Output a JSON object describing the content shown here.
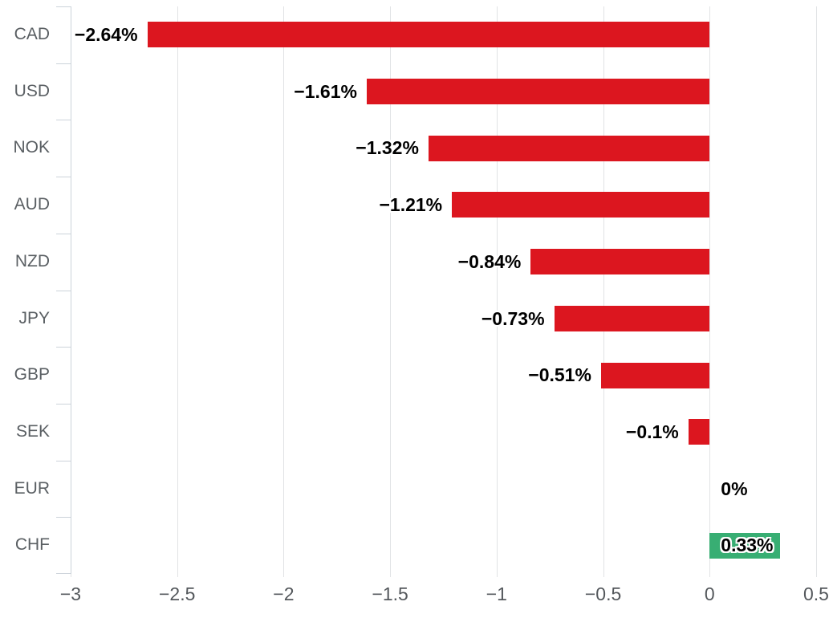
{
  "chart_data": {
    "type": "bar",
    "orientation": "horizontal",
    "title": "",
    "xlabel": "",
    "ylabel": "",
    "categories": [
      "CAD",
      "USD",
      "NOK",
      "AUD",
      "NZD",
      "JPY",
      "GBP",
      "SEK",
      "EUR",
      "CHF"
    ],
    "values": [
      -2.64,
      -1.61,
      -1.32,
      -1.21,
      -0.84,
      -0.73,
      -0.51,
      -0.1,
      0,
      0.33
    ],
    "data_labels": [
      "−2.64%",
      "−1.61%",
      "−1.32%",
      "−1.21%",
      "−0.84%",
      "−0.73%",
      "−0.51%",
      "−0.1%",
      "0%",
      "0.33%"
    ],
    "x_ticks": [
      -3,
      -2.5,
      -2,
      -1.5,
      -1,
      -0.5,
      0,
      0.5
    ],
    "x_tick_labels": [
      "−3",
      "−2.5",
      "−2",
      "−1.5",
      "−1",
      "−0.5",
      "0",
      "0.5"
    ],
    "xlim": [
      -3,
      0.5
    ],
    "grid": true,
    "legend": false,
    "colors": {
      "negative_bar": "#dc161f",
      "positive_bar": "#38ae73",
      "gridline": "#e1e3e5",
      "axis": "#ccd3da",
      "category_label": "#5a5f63",
      "tick_label": "#54585c",
      "data_label": "#000000",
      "background": "#ffffff"
    }
  }
}
